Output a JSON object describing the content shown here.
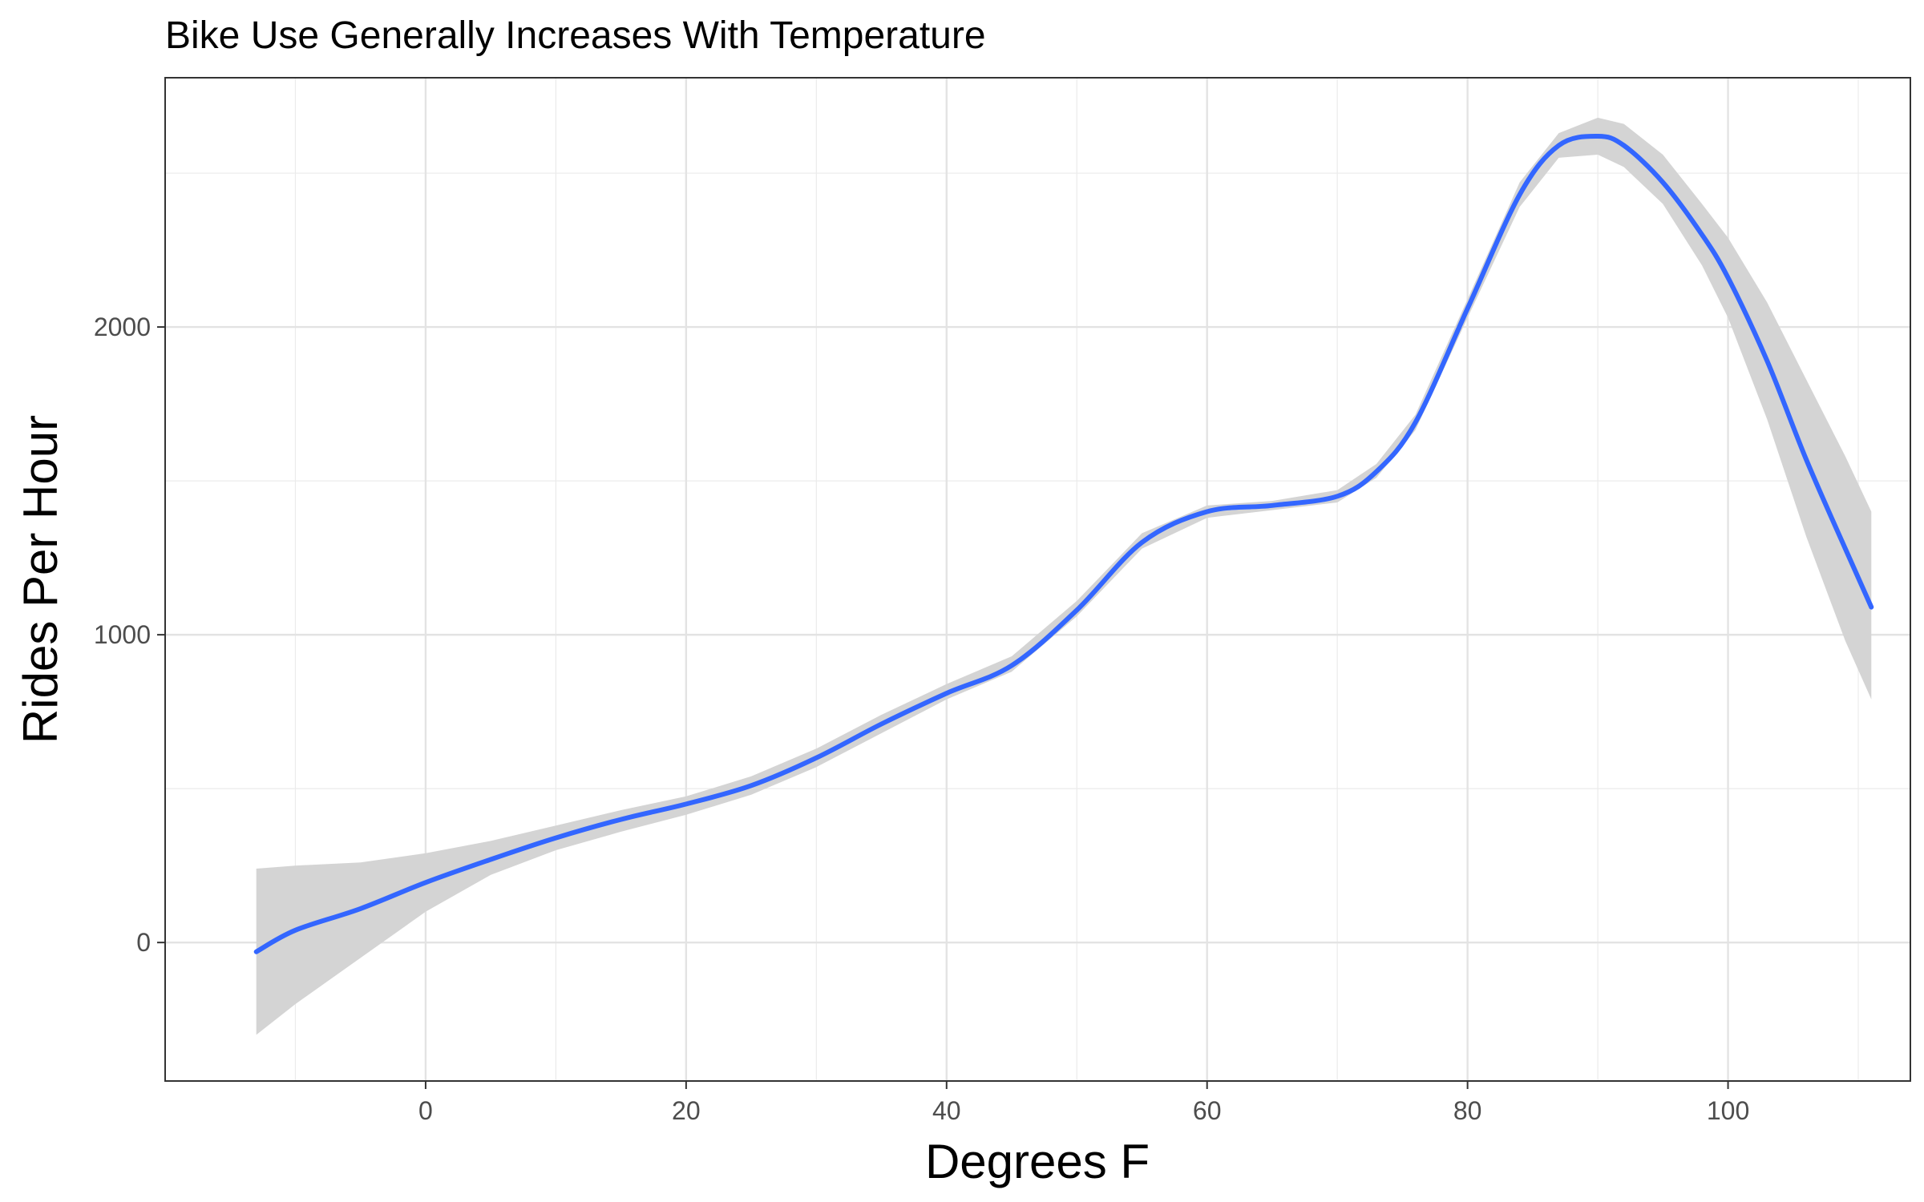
{
  "chart_data": {
    "type": "line",
    "title": "Bike Use Generally Increases With Temperature",
    "xlabel": "Degrees F",
    "ylabel": "Rides Per Hour",
    "xlim": [
      -20,
      114
    ],
    "ylim": [
      -450,
      2810
    ],
    "xticks": [
      0,
      20,
      40,
      60,
      80,
      100
    ],
    "yticks": [
      0,
      1000,
      2000
    ],
    "x_minor_grid": [
      -10,
      10,
      30,
      50,
      70,
      90,
      110
    ],
    "y_minor_grid": [
      500,
      1500,
      2500
    ],
    "grid": true,
    "line_color": "#3366ff",
    "ribbon_color": "#d4d4d4",
    "series": [
      {
        "x": [
          -13,
          -10,
          -5,
          0,
          5,
          10,
          15,
          20,
          25,
          30,
          35,
          40,
          45,
          50,
          55,
          60,
          65,
          70,
          73,
          76,
          80,
          84,
          87,
          90,
          92,
          95,
          98,
          100,
          103,
          106,
          109,
          111
        ],
        "y": [
          -30,
          40,
          110,
          195,
          270,
          340,
          400,
          450,
          510,
          600,
          710,
          810,
          900,
          1080,
          1300,
          1400,
          1420,
          1450,
          1530,
          1690,
          2060,
          2430,
          2590,
          2620,
          2590,
          2470,
          2300,
          2160,
          1890,
          1570,
          1280,
          1090
        ],
        "lower": [
          -300,
          -200,
          -50,
          100,
          220,
          300,
          360,
          415,
          480,
          570,
          680,
          790,
          880,
          1060,
          1280,
          1380,
          1405,
          1430,
          1510,
          1665,
          2030,
          2390,
          2550,
          2560,
          2520,
          2400,
          2200,
          2030,
          1700,
          1320,
          980,
          790
        ],
        "upper": [
          240,
          250,
          260,
          290,
          330,
          380,
          430,
          475,
          540,
          630,
          740,
          840,
          930,
          1110,
          1330,
          1420,
          1435,
          1470,
          1555,
          1715,
          2090,
          2470,
          2630,
          2680,
          2660,
          2560,
          2400,
          2290,
          2080,
          1830,
          1580,
          1400
        ]
      }
    ]
  }
}
